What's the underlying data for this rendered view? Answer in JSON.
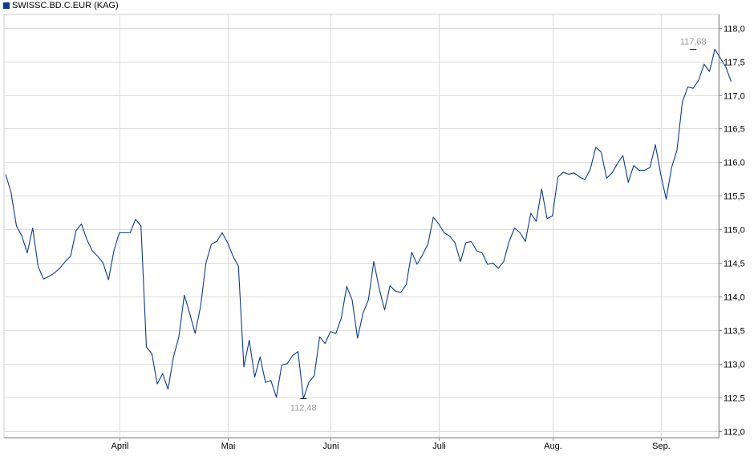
{
  "legend": {
    "label": "SWISSC.BD.C.EUR (KAG)",
    "color": "#0b3b8c"
  },
  "chart_data": {
    "type": "line",
    "title": "",
    "xlabel": "",
    "ylabel": "",
    "ylim": [
      111.9,
      118.2
    ],
    "y_ticks": [
      "112,0",
      "112,5",
      "113,0",
      "113,5",
      "114,0",
      "114,5",
      "115,0",
      "115,5",
      "116,0",
      "116,5",
      "117,0",
      "117,5",
      "118,0"
    ],
    "y_tick_values": [
      112.0,
      112.5,
      113.0,
      113.5,
      114.0,
      114.5,
      115.0,
      115.5,
      116.0,
      116.5,
      117.0,
      117.5,
      118.0
    ],
    "x_ticks": [
      "April",
      "Mai",
      "Juni",
      "Juli",
      "Aug.",
      "Sep."
    ],
    "x_tick_index": [
      21,
      41,
      60,
      80,
      101,
      121
    ],
    "grid": true,
    "line_color": "#0b3b8c",
    "series": [
      {
        "name": "SWISSC.BD.C.EUR (KAG)",
        "values": [
          115.82,
          115.55,
          115.05,
          114.9,
          114.65,
          115.02,
          114.45,
          114.26,
          114.3,
          114.35,
          114.42,
          114.52,
          114.6,
          114.98,
          115.08,
          114.85,
          114.68,
          114.6,
          114.5,
          114.25,
          114.68,
          114.95,
          114.95,
          114.95,
          115.15,
          115.05,
          113.25,
          113.15,
          112.7,
          112.85,
          112.62,
          113.1,
          113.4,
          114.02,
          113.75,
          113.45,
          113.85,
          114.5,
          114.78,
          114.82,
          114.95,
          114.8,
          114.6,
          114.45,
          112.95,
          113.35,
          112.8,
          113.1,
          112.72,
          112.75,
          112.5,
          112.98,
          113.0,
          113.12,
          113.18,
          112.48,
          112.72,
          112.82,
          113.4,
          113.3,
          113.48,
          113.45,
          113.68,
          114.15,
          113.95,
          113.38,
          113.75,
          113.95,
          114.52,
          114.12,
          113.8,
          114.16,
          114.08,
          114.06,
          114.18,
          114.66,
          114.48,
          114.62,
          114.78,
          115.18,
          115.08,
          114.95,
          114.9,
          114.8,
          114.52,
          114.8,
          114.82,
          114.68,
          114.65,
          114.48,
          114.5,
          114.42,
          114.52,
          114.82,
          115.02,
          114.95,
          114.82,
          115.24,
          115.12,
          115.6,
          115.16,
          115.2,
          115.78,
          115.85,
          115.82,
          115.84,
          115.78,
          115.74,
          115.9,
          116.22,
          116.15,
          115.76,
          115.84,
          115.98,
          116.1,
          115.7,
          115.95,
          115.88,
          115.88,
          115.92,
          116.26,
          115.82,
          115.45,
          115.92,
          116.18,
          116.9,
          117.12,
          117.1,
          117.22,
          117.46,
          117.35,
          117.68,
          117.55,
          117.42,
          117.2
        ]
      }
    ],
    "annotations": [
      {
        "text": "112,48",
        "index": 55,
        "value": 112.48,
        "position": "below"
      },
      {
        "text": "117,68",
        "index": 127,
        "value": 117.68,
        "position": "above"
      }
    ]
  }
}
